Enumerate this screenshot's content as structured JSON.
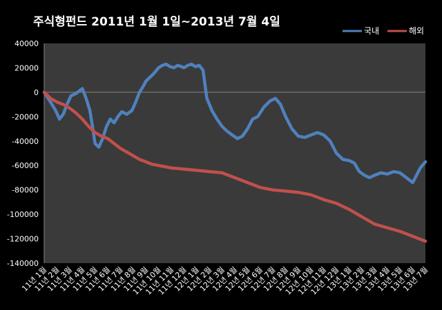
{
  "chart_data": {
    "type": "line",
    "title": "주식형펀드    2011년 1월 1일~2013년 7월 4일",
    "xlabel": "",
    "ylabel": "",
    "ylim": [
      -140000,
      40000
    ],
    "y_ticks": [
      40000,
      20000,
      0,
      -20000,
      -40000,
      -60000,
      -80000,
      -100000,
      -120000,
      -140000
    ],
    "x_tick_labels": [
      "11년 1월",
      "11년 2월",
      "11년 3월",
      "11년 4월",
      "11년 5월",
      "11년 6월",
      "11년 7월",
      "11년 8월",
      "11년 9월",
      "11년 10월",
      "11년 11월",
      "11년 12월",
      "12년 1월",
      "12년 2월",
      "12년 3월",
      "12년 4월",
      "12년 5월",
      "12년 6월",
      "12년 7월",
      "12년 8월",
      "12년 9월",
      "12년 10월",
      "12년 11월",
      "12년 12월",
      "13년 1월",
      "13년 2월",
      "13년 3월",
      "13년 4월",
      "13년 5월",
      "13년 6월",
      "13년 7월"
    ],
    "grid": false,
    "legend_position": "top-right",
    "colors": {
      "background": "#000000",
      "plot_background": "#3a3a3a",
      "domestic": "#4f81bd",
      "foreign": "#c0504d",
      "text": "#ffffff"
    },
    "series": [
      {
        "name": "국내",
        "x": [
          0,
          0.5,
          0.9,
          1.2,
          1.5,
          1.8,
          2.1,
          2.5,
          3.0,
          3.3,
          3.6,
          3.8,
          4.0,
          4.3,
          4.6,
          4.9,
          5.2,
          5.5,
          5.8,
          6.1,
          6.5,
          6.9,
          7.2,
          7.5,
          7.8,
          8.0,
          8.3,
          8.6,
          9.0,
          9.3,
          9.6,
          9.9,
          10.2,
          10.5,
          10.8,
          11.0,
          11.3,
          11.6,
          11.9,
          12.2,
          12.5,
          12.8,
          13.2,
          13.6,
          14.0,
          14.4,
          14.8,
          15.2,
          15.6,
          16.0,
          16.4,
          16.8,
          17.3,
          17.8,
          18.2,
          18.6,
          19.0,
          19.5,
          20.0,
          20.5,
          21.0,
          21.5,
          22.0,
          22.5,
          23.0,
          23.5,
          24.0,
          24.4,
          24.8,
          25.2,
          25.6,
          26.0,
          26.5,
          27.0,
          27.5,
          28.0,
          28.5,
          29.0,
          29.3,
          29.6,
          30.0
        ],
        "values": [
          0,
          -8000,
          -15000,
          -22000,
          -18000,
          -10000,
          -3000,
          -1000,
          3000,
          -5000,
          -15000,
          -28000,
          -42000,
          -45000,
          -38000,
          -28000,
          -22000,
          -25000,
          -20000,
          -16000,
          -18000,
          -15000,
          -8000,
          0,
          5000,
          9000,
          12000,
          15000,
          20000,
          22000,
          23000,
          21000,
          20000,
          22000,
          21000,
          20000,
          22000,
          23000,
          21000,
          22000,
          18000,
          -5000,
          -15000,
          -22000,
          -28000,
          -32000,
          -35000,
          -38000,
          -36000,
          -30000,
          -22000,
          -20000,
          -12000,
          -7000,
          -5000,
          -10000,
          -20000,
          -30000,
          -36000,
          -37000,
          -35000,
          -33000,
          -35000,
          -40000,
          -50000,
          -55000,
          -56000,
          -58000,
          -65000,
          -68000,
          -70000,
          -68000,
          -66000,
          -67000,
          -65000,
          -66000,
          -70000,
          -74000,
          -68000,
          -62000,
          -57000
        ]
      },
      {
        "name": "해외",
        "x": [
          0,
          0.5,
          1.0,
          1.5,
          2.0,
          2.5,
          3.0,
          3.5,
          4.0,
          4.5,
          5.0,
          5.5,
          6.0,
          6.5,
          7.0,
          7.5,
          8.0,
          8.5,
          9.0,
          9.5,
          10.0,
          11.0,
          12.0,
          13.0,
          14.0,
          15.0,
          16.0,
          17.0,
          18.0,
          19.0,
          20.0,
          21.0,
          22.0,
          23.0,
          24.0,
          25.0,
          26.0,
          27.0,
          28.0,
          29.0,
          30.0
        ],
        "values": [
          0,
          -5000,
          -8000,
          -10000,
          -13000,
          -17000,
          -22000,
          -28000,
          -33000,
          -36000,
          -38000,
          -42000,
          -46000,
          -49000,
          -52000,
          -55000,
          -57000,
          -59000,
          -60000,
          -61000,
          -62000,
          -63000,
          -64000,
          -65000,
          -66000,
          -70000,
          -74000,
          -78000,
          -80000,
          -81000,
          -82000,
          -84000,
          -88000,
          -91000,
          -96000,
          -102000,
          -108000,
          -111000,
          -114000,
          -118000,
          -122000
        ]
      }
    ]
  }
}
